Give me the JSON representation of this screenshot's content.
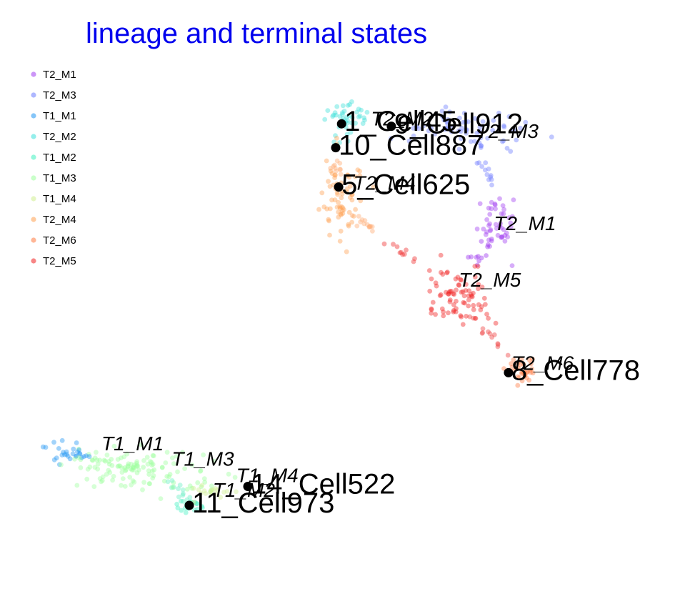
{
  "chart_data": {
    "type": "scatter",
    "title": "lineage and terminal states",
    "title_color": "#0000ee",
    "xlabel": "",
    "ylabel": "",
    "axes_visible": false,
    "grid": false,
    "legend_position": "top-left",
    "clusters": [
      {
        "name": "T2_M1",
        "color": "#a03cf0",
        "cx": 0.78,
        "cy": 0.7,
        "sx": 0.018,
        "sy": 0.03,
        "n": 45
      },
      {
        "name": "T2_M3",
        "color": "#6b7bff",
        "cx": 0.72,
        "cy": 0.9,
        "sx": 0.055,
        "sy": 0.02,
        "n": 60
      },
      {
        "name": "T1_M1",
        "color": "#2196f3",
        "cx": 0.04,
        "cy": 0.23,
        "sx": 0.02,
        "sy": 0.01,
        "n": 28
      },
      {
        "name": "T2_M2",
        "color": "#3de0da",
        "cx": 0.52,
        "cy": 0.92,
        "sx": 0.025,
        "sy": 0.02,
        "n": 45
      },
      {
        "name": "T1_M2",
        "color": "#40f0c0",
        "cx": 0.25,
        "cy": 0.12,
        "sx": 0.012,
        "sy": 0.008,
        "n": 22
      },
      {
        "name": "T1_M3",
        "color": "#9dff9d",
        "cx": 0.16,
        "cy": 0.2,
        "sx": 0.06,
        "sy": 0.025,
        "n": 90
      },
      {
        "name": "T1_M4",
        "color": "#d0ee90",
        "cx": 0.29,
        "cy": 0.15,
        "sx": 0.018,
        "sy": 0.008,
        "n": 18
      },
      {
        "name": "T2_M4",
        "color": "#ffa050",
        "cx": 0.51,
        "cy": 0.76,
        "sx": 0.018,
        "sy": 0.04,
        "n": 70
      },
      {
        "name": "T2_M6",
        "color": "#ff7a40",
        "cx": 0.82,
        "cy": 0.4,
        "sx": 0.01,
        "sy": 0.02,
        "n": 32
      },
      {
        "name": "T2_M5",
        "color": "#f02020",
        "cx": 0.71,
        "cy": 0.55,
        "sx": 0.025,
        "sy": 0.03,
        "n": 80
      }
    ],
    "cluster_labels": [
      {
        "text": "T2_M1",
        "x": 0.77,
        "y": 0.688
      },
      {
        "text": "T2_M3",
        "x": 0.74,
        "y": 0.878
      },
      {
        "text": "T2_M2",
        "x": 0.56,
        "y": 0.904
      },
      {
        "text": "T2_M4",
        "x": 0.53,
        "y": 0.771
      },
      {
        "text": "T2_M5",
        "x": 0.71,
        "y": 0.572
      },
      {
        "text": "T2_M6",
        "x": 0.8,
        "y": 0.401
      },
      {
        "text": "T1_M1",
        "x": 0.1,
        "y": 0.235
      },
      {
        "text": "T1_M3",
        "x": 0.22,
        "y": 0.204
      },
      {
        "text": "T1_M4",
        "x": 0.33,
        "y": 0.17
      },
      {
        "text": "T1_M2",
        "x": 0.29,
        "y": 0.14
      }
    ],
    "terminal_states": [
      {
        "label": "1_Cell45",
        "x": 0.51,
        "y": 0.907
      },
      {
        "label": "9_Cell912",
        "x": 0.595,
        "y": 0.902
      },
      {
        "label": "10_Cell887",
        "x": 0.5,
        "y": 0.858
      },
      {
        "label": "5_Cell625",
        "x": 0.505,
        "y": 0.777
      },
      {
        "label": "8_Cell778",
        "x": 0.795,
        "y": 0.395
      },
      {
        "label": "14_Cell522",
        "x": 0.35,
        "y": 0.161
      },
      {
        "label": "11_Cell973",
        "x": 0.25,
        "y": 0.122
      }
    ],
    "bridges": [
      {
        "color": "#ffb07a",
        "points": [
          [
            0.5,
            0.83
          ],
          [
            0.505,
            0.8
          ]
        ],
        "n": 10
      },
      {
        "color": "#ffb07a",
        "points": [
          [
            0.53,
            0.72
          ],
          [
            0.57,
            0.68
          ]
        ],
        "n": 14
      },
      {
        "color": "#f03a3a",
        "points": [
          [
            0.57,
            0.68
          ],
          [
            0.65,
            0.6
          ]
        ],
        "n": 10
      },
      {
        "color": "#7a86ff",
        "points": [
          [
            0.74,
            0.88
          ],
          [
            0.77,
            0.76
          ]
        ],
        "n": 16
      },
      {
        "color": "#a03cf0",
        "points": [
          [
            0.76,
            0.67
          ],
          [
            0.73,
            0.62
          ]
        ],
        "n": 12
      },
      {
        "color": "#f04a4a",
        "points": [
          [
            0.73,
            0.51
          ],
          [
            0.8,
            0.43
          ]
        ],
        "n": 14
      },
      {
        "color": "#9dff9d",
        "points": [
          [
            0.07,
            0.225
          ],
          [
            0.3,
            0.15
          ]
        ],
        "n": 40
      },
      {
        "color": "#70f0c8",
        "points": [
          [
            0.22,
            0.17
          ],
          [
            0.25,
            0.125
          ]
        ],
        "n": 14
      }
    ]
  }
}
